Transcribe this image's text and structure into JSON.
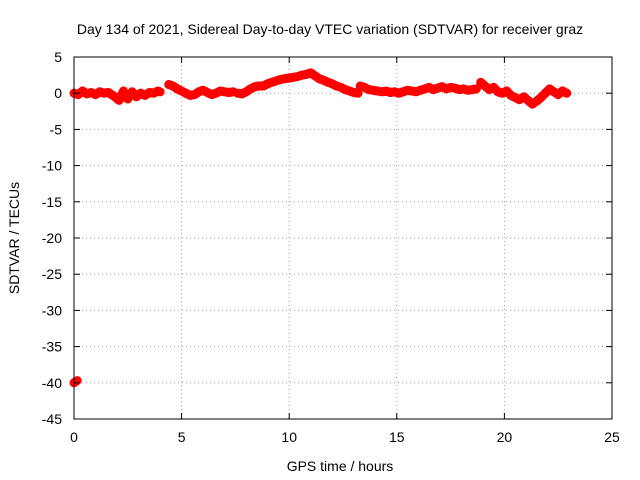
{
  "chart_data": {
    "type": "scatter",
    "title": "Day 134 of 2021, Sidereal Day-to-day VTEC variation (SDTVAR) for receiver graz",
    "xlabel": "GPS time / hours",
    "ylabel": "SDTVAR / TECUs",
    "xlim": [
      0,
      25
    ],
    "ylim": [
      -45,
      5
    ],
    "xticks": [
      0,
      5,
      10,
      15,
      20,
      25
    ],
    "yticks": [
      5,
      0,
      -5,
      -10,
      -15,
      -20,
      -25,
      -30,
      -35,
      -40,
      -45
    ],
    "grid": true,
    "series": [
      {
        "name": "SDTVAR",
        "color": "#ff0000",
        "marker": "plus",
        "segments": [
          {
            "x": [
              0.0,
              0.15
            ],
            "y": [
              -40.0,
              -39.7
            ]
          },
          {
            "x": [
              0.0,
              0.2,
              0.4,
              0.6,
              0.8,
              1.0,
              1.2,
              1.4,
              1.6,
              1.8
            ],
            "y": [
              0.0,
              -0.2,
              0.3,
              -0.1,
              0.1,
              -0.2,
              0.2,
              0.0,
              0.1,
              -0.3
            ]
          },
          {
            "x": [
              1.9,
              2.1,
              2.3,
              2.5,
              2.7,
              2.9,
              3.1,
              3.3,
              3.5,
              3.7,
              3.9,
              4.0
            ],
            "y": [
              -0.5,
              -1.0,
              0.3,
              -0.8,
              0.2,
              -0.5,
              0.0,
              -0.3,
              0.1,
              0.0,
              0.3,
              0.2
            ]
          },
          {
            "x": [
              4.4,
              4.6,
              4.8,
              5.0,
              5.2,
              5.4,
              5.6,
              5.8,
              6.0,
              6.2,
              6.4,
              6.6,
              6.8,
              7.0,
              7.2,
              7.4
            ],
            "y": [
              1.2,
              1.0,
              0.6,
              0.3,
              0.0,
              -0.3,
              -0.2,
              0.2,
              0.4,
              0.1,
              -0.2,
              0.0,
              0.3,
              0.2,
              0.1,
              0.2
            ]
          },
          {
            "x": [
              7.6,
              7.8,
              8.0,
              8.2,
              8.4,
              8.6,
              8.8,
              9.0,
              9.2,
              9.4,
              9.6,
              9.8,
              10.0,
              10.2,
              10.4,
              10.6,
              10.8,
              11.0,
              11.2,
              11.4,
              11.6,
              11.8,
              12.0,
              12.2,
              12.4,
              12.6,
              12.8,
              13.0,
              13.2
            ],
            "y": [
              0.0,
              -0.1,
              0.2,
              0.6,
              0.9,
              1.0,
              1.0,
              1.3,
              1.5,
              1.7,
              1.9,
              2.0,
              2.1,
              2.2,
              2.3,
              2.5,
              2.6,
              2.8,
              2.4,
              2.0,
              1.8,
              1.5,
              1.3,
              1.0,
              0.8,
              0.5,
              0.3,
              0.1,
              0.0
            ]
          },
          {
            "x": [
              13.3,
              13.5,
              13.7,
              13.9,
              14.1,
              14.3,
              14.5,
              14.7,
              14.9,
              15.1,
              15.3,
              15.5,
              15.7,
              15.9,
              16.1,
              16.3,
              16.5,
              16.7,
              16.9,
              17.1,
              17.3,
              17.5,
              17.7,
              17.9,
              18.1,
              18.3,
              18.5,
              18.7
            ],
            "y": [
              1.0,
              0.8,
              0.5,
              0.4,
              0.3,
              0.2,
              0.3,
              0.1,
              0.2,
              0.0,
              0.2,
              0.4,
              0.3,
              0.2,
              0.4,
              0.6,
              0.8,
              0.5,
              0.7,
              0.9,
              0.6,
              0.8,
              0.7,
              0.5,
              0.6,
              0.4,
              0.5,
              0.6
            ]
          },
          {
            "x": [
              18.9,
              19.1,
              19.3,
              19.5,
              19.7,
              19.9,
              20.1,
              20.3,
              20.5,
              20.7,
              20.9,
              21.1,
              21.3,
              21.5,
              21.7,
              21.9,
              22.1,
              22.3,
              22.5,
              22.7,
              22.9
            ],
            "y": [
              1.5,
              1.0,
              0.5,
              0.8,
              0.2,
              0.0,
              0.3,
              -0.3,
              -0.6,
              -0.9,
              -0.5,
              -1.0,
              -1.5,
              -1.1,
              -0.6,
              0.0,
              0.6,
              0.2,
              -0.2,
              0.3,
              0.0
            ]
          }
        ]
      }
    ]
  }
}
